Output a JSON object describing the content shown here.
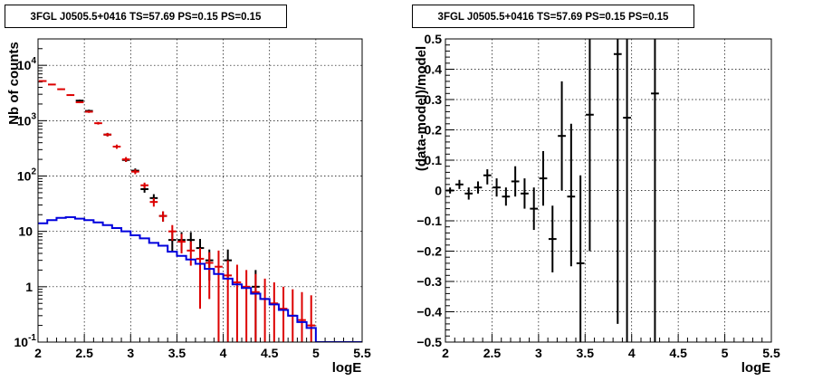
{
  "chart_data": [
    {
      "type": "line",
      "title": "3FGL J0505.5+0416 TS=57.69 PS=0.15 PS=0.15",
      "xlabel": "logE",
      "ylabel": "Nb of counts",
      "xlim": [
        2,
        5.5
      ],
      "ylim": [
        0.1,
        30000
      ],
      "yscale": "log",
      "grid": true,
      "x_ticks": [
        "2",
        "2.5",
        "3",
        "3.5",
        "4",
        "4.5",
        "5",
        "5.5"
      ],
      "y_ticks": [
        {
          "v": 0.1,
          "base": "10",
          "exp": "-1"
        },
        {
          "v": 1,
          "base": "1",
          "exp": ""
        },
        {
          "v": 10,
          "base": "10",
          "exp": ""
        },
        {
          "v": 100,
          "base": "10",
          "exp": "2"
        },
        {
          "v": 1000,
          "base": "10",
          "exp": "3"
        },
        {
          "v": 10000,
          "base": "10",
          "exp": "4"
        }
      ],
      "series": [
        {
          "color": "#000000",
          "style": "errorbar",
          "points": [
            {
              "x": 2.45,
              "y": 2300,
              "ylo": 2200,
              "yhi": 2400
            },
            {
              "x": 2.55,
              "y": 1500,
              "ylo": 1420,
              "yhi": 1580
            },
            {
              "x": 2.75,
              "y": 560,
              "ylo": 520,
              "yhi": 600
            },
            {
              "x": 2.95,
              "y": 195,
              "ylo": 180,
              "yhi": 210
            },
            {
              "x": 3.05,
              "y": 125,
              "ylo": 113,
              "yhi": 137
            },
            {
              "x": 3.15,
              "y": 58,
              "ylo": 50,
              "yhi": 66
            },
            {
              "x": 3.25,
              "y": 40,
              "ylo": 34,
              "yhi": 47
            },
            {
              "x": 3.35,
              "y": 19,
              "ylo": 15,
              "yhi": 23
            },
            {
              "x": 3.45,
              "y": 7,
              "ylo": 4.4,
              "yhi": 9.7
            },
            {
              "x": 3.55,
              "y": 7,
              "ylo": 4.4,
              "yhi": 9.7
            },
            {
              "x": 3.65,
              "y": 7,
              "ylo": 4.4,
              "yhi": 9.7
            },
            {
              "x": 3.75,
              "y": 5,
              "ylo": 2.8,
              "yhi": 7.3
            },
            {
              "x": 3.85,
              "y": 3,
              "ylo": 1.3,
              "yhi": 4.7
            },
            {
              "x": 4.05,
              "y": 3,
              "ylo": 1.3,
              "yhi": 4.7
            },
            {
              "x": 4.35,
              "y": 1,
              "ylo": 0.1,
              "yhi": 2
            }
          ]
        },
        {
          "color": "#dd0000",
          "style": "errorbar",
          "points": [
            {
              "x": 2.05,
              "y": 5200,
              "ylo": 5050,
              "yhi": 5350
            },
            {
              "x": 2.15,
              "y": 4500,
              "ylo": 4380,
              "yhi": 4620
            },
            {
              "x": 2.25,
              "y": 3700,
              "ylo": 3590,
              "yhi": 3810
            },
            {
              "x": 2.35,
              "y": 2900,
              "ylo": 2800,
              "yhi": 3000
            },
            {
              "x": 2.45,
              "y": 2150,
              "ylo": 2070,
              "yhi": 2230
            },
            {
              "x": 2.55,
              "y": 1450,
              "ylo": 1380,
              "yhi": 1520
            },
            {
              "x": 2.65,
              "y": 900,
              "ylo": 850,
              "yhi": 950
            },
            {
              "x": 2.75,
              "y": 560,
              "ylo": 520,
              "yhi": 600
            },
            {
              "x": 2.85,
              "y": 340,
              "ylo": 310,
              "yhi": 370
            },
            {
              "x": 2.95,
              "y": 200,
              "ylo": 180,
              "yhi": 220
            },
            {
              "x": 3.05,
              "y": 120,
              "ylo": 108,
              "yhi": 132
            },
            {
              "x": 3.15,
              "y": 68,
              "ylo": 60,
              "yhi": 76
            },
            {
              "x": 3.25,
              "y": 34,
              "ylo": 28,
              "yhi": 40
            },
            {
              "x": 3.35,
              "y": 19,
              "ylo": 15,
              "yhi": 23
            },
            {
              "x": 3.45,
              "y": 10,
              "ylo": 6.8,
              "yhi": 13
            },
            {
              "x": 3.55,
              "y": 6.5,
              "ylo": 4,
              "yhi": 9
            },
            {
              "x": 3.65,
              "y": 4.5,
              "ylo": 2.4,
              "yhi": 6.6
            },
            {
              "x": 3.75,
              "y": 3.2,
              "ylo": 0.4,
              "yhi": 5
            },
            {
              "x": 3.85,
              "y": 2.7,
              "ylo": 0.6,
              "yhi": 4.2
            },
            {
              "x": 3.95,
              "y": 2.3,
              "ylo": 0.1,
              "yhi": 4.5
            },
            {
              "x": 4.05,
              "y": 1.6,
              "ylo": 0.1,
              "yhi": 3
            },
            {
              "x": 4.15,
              "y": 1.2,
              "ylo": 0.1,
              "yhi": 2.5
            },
            {
              "x": 4.25,
              "y": 1.0,
              "ylo": 0.1,
              "yhi": 2
            },
            {
              "x": 4.35,
              "y": 0.8,
              "ylo": 0.1,
              "yhi": 1.7
            },
            {
              "x": 4.45,
              "y": 0.6,
              "ylo": 0.1,
              "yhi": 1.4
            },
            {
              "x": 4.55,
              "y": 0.5,
              "ylo": 0.1,
              "yhi": 1.2
            },
            {
              "x": 4.65,
              "y": 0.4,
              "ylo": 0.1,
              "yhi": 1
            },
            {
              "x": 4.75,
              "y": 0.3,
              "ylo": 0.1,
              "yhi": 0.9
            },
            {
              "x": 4.85,
              "y": 0.25,
              "ylo": 0.1,
              "yhi": 0.8
            },
            {
              "x": 4.95,
              "y": 0.2,
              "ylo": 0.1,
              "yhi": 0.7
            }
          ]
        },
        {
          "color": "#0000dd",
          "style": "step",
          "bin_width": 0.1,
          "bins": [
            {
              "x": 2.0,
              "y": 14
            },
            {
              "x": 2.1,
              "y": 16
            },
            {
              "x": 2.2,
              "y": 17.5
            },
            {
              "x": 2.3,
              "y": 18
            },
            {
              "x": 2.4,
              "y": 17
            },
            {
              "x": 2.5,
              "y": 16
            },
            {
              "x": 2.6,
              "y": 14.5
            },
            {
              "x": 2.7,
              "y": 13
            },
            {
              "x": 2.8,
              "y": 11.5
            },
            {
              "x": 2.9,
              "y": 10
            },
            {
              "x": 3.0,
              "y": 8.5
            },
            {
              "x": 3.1,
              "y": 7.5
            },
            {
              "x": 3.2,
              "y": 6.2
            },
            {
              "x": 3.3,
              "y": 5.5
            },
            {
              "x": 3.4,
              "y": 4.3
            },
            {
              "x": 3.5,
              "y": 3.6
            },
            {
              "x": 3.6,
              "y": 3.1
            },
            {
              "x": 3.7,
              "y": 2.6
            },
            {
              "x": 3.8,
              "y": 2.1
            },
            {
              "x": 3.9,
              "y": 1.7
            },
            {
              "x": 4.0,
              "y": 1.4
            },
            {
              "x": 4.1,
              "y": 1.1
            },
            {
              "x": 4.2,
              "y": 0.95
            },
            {
              "x": 4.3,
              "y": 0.75
            },
            {
              "x": 4.4,
              "y": 0.6
            },
            {
              "x": 4.5,
              "y": 0.48
            },
            {
              "x": 4.6,
              "y": 0.38
            },
            {
              "x": 4.7,
              "y": 0.3
            },
            {
              "x": 4.8,
              "y": 0.23
            },
            {
              "x": 4.9,
              "y": 0.18
            },
            {
              "x": 5.0,
              "y": 0.1
            },
            {
              "x": 5.1,
              "y": 0.1
            },
            {
              "x": 5.2,
              "y": 0.1
            },
            {
              "x": 5.3,
              "y": 0.1
            },
            {
              "x": 5.4,
              "y": 0.1
            }
          ]
        }
      ]
    },
    {
      "type": "scatter",
      "title": "3FGL J0505.5+0416 TS=57.69 PS=0.15 PS=0.15",
      "xlabel": "logE",
      "ylabel": "(data-model)/model",
      "xlim": [
        2,
        5.5
      ],
      "ylim": [
        -0.5,
        0.5
      ],
      "yscale": "linear",
      "grid": true,
      "x_ticks": [
        "2",
        "2.5",
        "3",
        "3.5",
        "4",
        "4.5",
        "5",
        "5.5"
      ],
      "y_ticks": [
        "-0.5",
        "-0.4",
        "-0.3",
        "-0.2",
        "-0.1",
        "0",
        "0.1",
        "0.2",
        "0.3",
        "0.4",
        "0.5"
      ],
      "series": [
        {
          "color": "#000000",
          "style": "errorbar",
          "points": [
            {
              "x": 2.05,
              "y": 0.0,
              "ylo": -0.01,
              "yhi": 0.01
            },
            {
              "x": 2.15,
              "y": 0.02,
              "ylo": 0.005,
              "yhi": 0.035
            },
            {
              "x": 2.25,
              "y": -0.01,
              "ylo": -0.03,
              "yhi": 0.01
            },
            {
              "x": 2.35,
              "y": 0.01,
              "ylo": -0.01,
              "yhi": 0.03
            },
            {
              "x": 2.45,
              "y": 0.05,
              "ylo": 0.02,
              "yhi": 0.07
            },
            {
              "x": 2.55,
              "y": 0.01,
              "ylo": -0.02,
              "yhi": 0.04
            },
            {
              "x": 2.65,
              "y": -0.02,
              "ylo": -0.05,
              "yhi": 0.01
            },
            {
              "x": 2.75,
              "y": 0.03,
              "ylo": -0.02,
              "yhi": 0.08
            },
            {
              "x": 2.85,
              "y": -0.01,
              "ylo": -0.06,
              "yhi": 0.04
            },
            {
              "x": 2.95,
              "y": -0.06,
              "ylo": -0.13,
              "yhi": 0.01
            },
            {
              "x": 3.05,
              "y": 0.04,
              "ylo": -0.05,
              "yhi": 0.13
            },
            {
              "x": 3.15,
              "y": -0.16,
              "ylo": -0.27,
              "yhi": -0.05
            },
            {
              "x": 3.25,
              "y": 0.18,
              "ylo": 0.0,
              "yhi": 0.36
            },
            {
              "x": 3.35,
              "y": -0.02,
              "ylo": -0.25,
              "yhi": 0.22
            },
            {
              "x": 3.45,
              "y": -0.24,
              "ylo": -0.5,
              "yhi": 0.05
            },
            {
              "x": 3.55,
              "y": 0.25,
              "ylo": -0.2,
              "yhi": 0.5
            },
            {
              "x": 3.85,
              "y": 0.45,
              "ylo": -0.44,
              "yhi": 0.5
            },
            {
              "x": 3.95,
              "y": 0.24,
              "ylo": -0.5,
              "yhi": 0.5
            },
            {
              "x": 4.25,
              "y": 0.32,
              "ylo": -0.5,
              "yhi": 0.5
            }
          ]
        }
      ]
    }
  ]
}
